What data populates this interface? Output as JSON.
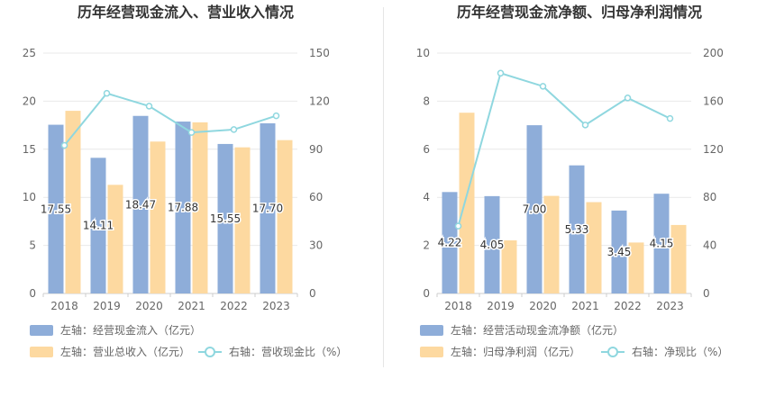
{
  "colors": {
    "bar_primary": "#8eadd9",
    "bar_secondary": "#fdd9a0",
    "line": "#8fd7df",
    "grid": "#e9e9e9",
    "axis_text": "#666666",
    "title_text": "#333333",
    "label_text": "#333333"
  },
  "chart_data": [
    {
      "type": "bar",
      "title": "历年经营现金流入、营业收入情况",
      "categories": [
        "2018",
        "2019",
        "2020",
        "2021",
        "2022",
        "2023"
      ],
      "left_axis": {
        "min": 0,
        "max": 25,
        "ticks": [
          "0",
          "5",
          "10",
          "15",
          "20",
          "25"
        ]
      },
      "right_axis": {
        "min": 0,
        "max": 150,
        "ticks": [
          "0",
          "30",
          "60",
          "90",
          "120",
          "150"
        ]
      },
      "series": [
        {
          "name": "左轴：经营现金流入（亿元）",
          "kind": "bar",
          "axis": "left",
          "values": [
            17.55,
            14.11,
            18.47,
            17.88,
            15.55,
            17.7
          ],
          "labels": [
            "17.55",
            "14.11",
            "18.47",
            "17.88",
            "15.55",
            "17.70"
          ]
        },
        {
          "name": "左轴：营业总收入（亿元）",
          "kind": "bar",
          "axis": "left",
          "values": [
            19.0,
            11.3,
            15.8,
            17.8,
            15.2,
            15.95
          ]
        },
        {
          "name": "右轴：营收现金比（%）",
          "kind": "line",
          "axis": "right",
          "values": [
            92.4,
            124.9,
            116.9,
            100.5,
            102.3,
            110.9
          ]
        }
      ],
      "legend_position": "bottom",
      "grid": true
    },
    {
      "type": "bar",
      "title": "历年经营现金流净额、归母净利润情况",
      "categories": [
        "2018",
        "2019",
        "2020",
        "2021",
        "2022",
        "2023"
      ],
      "left_axis": {
        "min": 0,
        "max": 10,
        "ticks": [
          "0",
          "2",
          "4",
          "6",
          "8",
          "10"
        ]
      },
      "right_axis": {
        "min": 0,
        "max": 200,
        "ticks": [
          "0",
          "40",
          "80",
          "120",
          "160",
          "200"
        ]
      },
      "series": [
        {
          "name": "左轴：经营活动现金流净额（亿元）",
          "kind": "bar",
          "axis": "left",
          "values": [
            4.22,
            4.05,
            7.0,
            5.33,
            3.45,
            4.15
          ],
          "labels": [
            "4.22",
            "4.05",
            "7.00",
            "5.33",
            "3.45",
            "4.15"
          ]
        },
        {
          "name": "左轴：归母净利润（亿元）",
          "kind": "bar",
          "axis": "left",
          "values": [
            7.52,
            2.21,
            4.06,
            3.8,
            2.12,
            2.85
          ]
        },
        {
          "name": "右轴：净现比（%）",
          "kind": "line",
          "axis": "right",
          "values": [
            56.1,
            183.3,
            172.4,
            140.2,
            162.7,
            145.6
          ]
        }
      ],
      "legend_position": "bottom",
      "grid": true
    }
  ]
}
